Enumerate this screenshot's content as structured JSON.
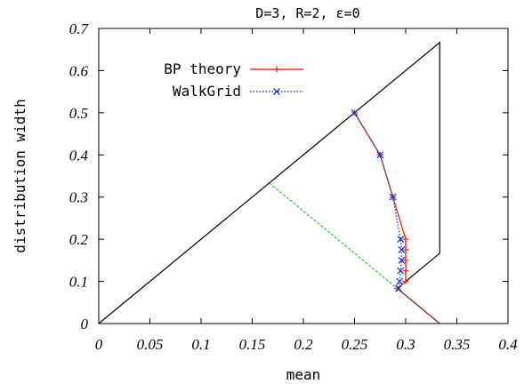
{
  "chart_data": {
    "type": "line",
    "title": "D=3, R=2, ε=0",
    "xlabel": "mean",
    "ylabel": "distribution width",
    "xlim": [
      0,
      0.4
    ],
    "ylim": [
      0,
      0.7
    ],
    "x_ticks": [
      "0",
      "0.05",
      "0.1",
      "0.15",
      "0.2",
      "0.25",
      "0.3",
      "0.35",
      "0.4"
    ],
    "y_ticks": [
      "0",
      "0.1",
      "0.2",
      "0.3",
      "0.4",
      "0.5",
      "0.6",
      "0.7"
    ],
    "x_tick_values": [
      0,
      0.05,
      0.1,
      0.15,
      0.2,
      0.25,
      0.3,
      0.35,
      0.4
    ],
    "y_tick_values": [
      0,
      0.1,
      0.2,
      0.3,
      0.4,
      0.5,
      0.6,
      0.7
    ],
    "legend_position": "top-left",
    "series": [
      {
        "name": "BP theory",
        "color": "#e8361e",
        "marker": "plus",
        "line": "solid",
        "x": [
          0.25,
          0.275,
          0.2875,
          0.3,
          0.3,
          0.3,
          0.3,
          0.3,
          0.2917
        ],
        "y": [
          0.5,
          0.4,
          0.3,
          0.2,
          0.175,
          0.15,
          0.125,
          0.1,
          0.0833
        ]
      },
      {
        "name": "WalkGrid",
        "color": "#1f3fd6",
        "marker": "x",
        "line": "dotted",
        "x": [
          0.25,
          0.275,
          0.2875,
          0.295,
          0.296,
          0.296,
          0.295,
          0.294,
          0.293
        ],
        "y": [
          0.5,
          0.4,
          0.3,
          0.2,
          0.175,
          0.15,
          0.125,
          0.1,
          0.0833
        ]
      }
    ],
    "boundary_lines": [
      {
        "color": "#000000",
        "style": "solid",
        "x": [
          0,
          0.3333,
          0.3333,
          0.2917
        ],
        "y": [
          0,
          0.6667,
          0.1667,
          0.0833
        ]
      },
      {
        "color": "#22cc22",
        "style": "dashed",
        "x": [
          0.1667,
          0.2917
        ],
        "y": [
          0.3333,
          0.0833
        ]
      },
      {
        "color": "#8b1a1a",
        "style": "solid",
        "x": [
          0.2917,
          0.3333
        ],
        "y": [
          0.0833,
          0
        ]
      }
    ]
  }
}
